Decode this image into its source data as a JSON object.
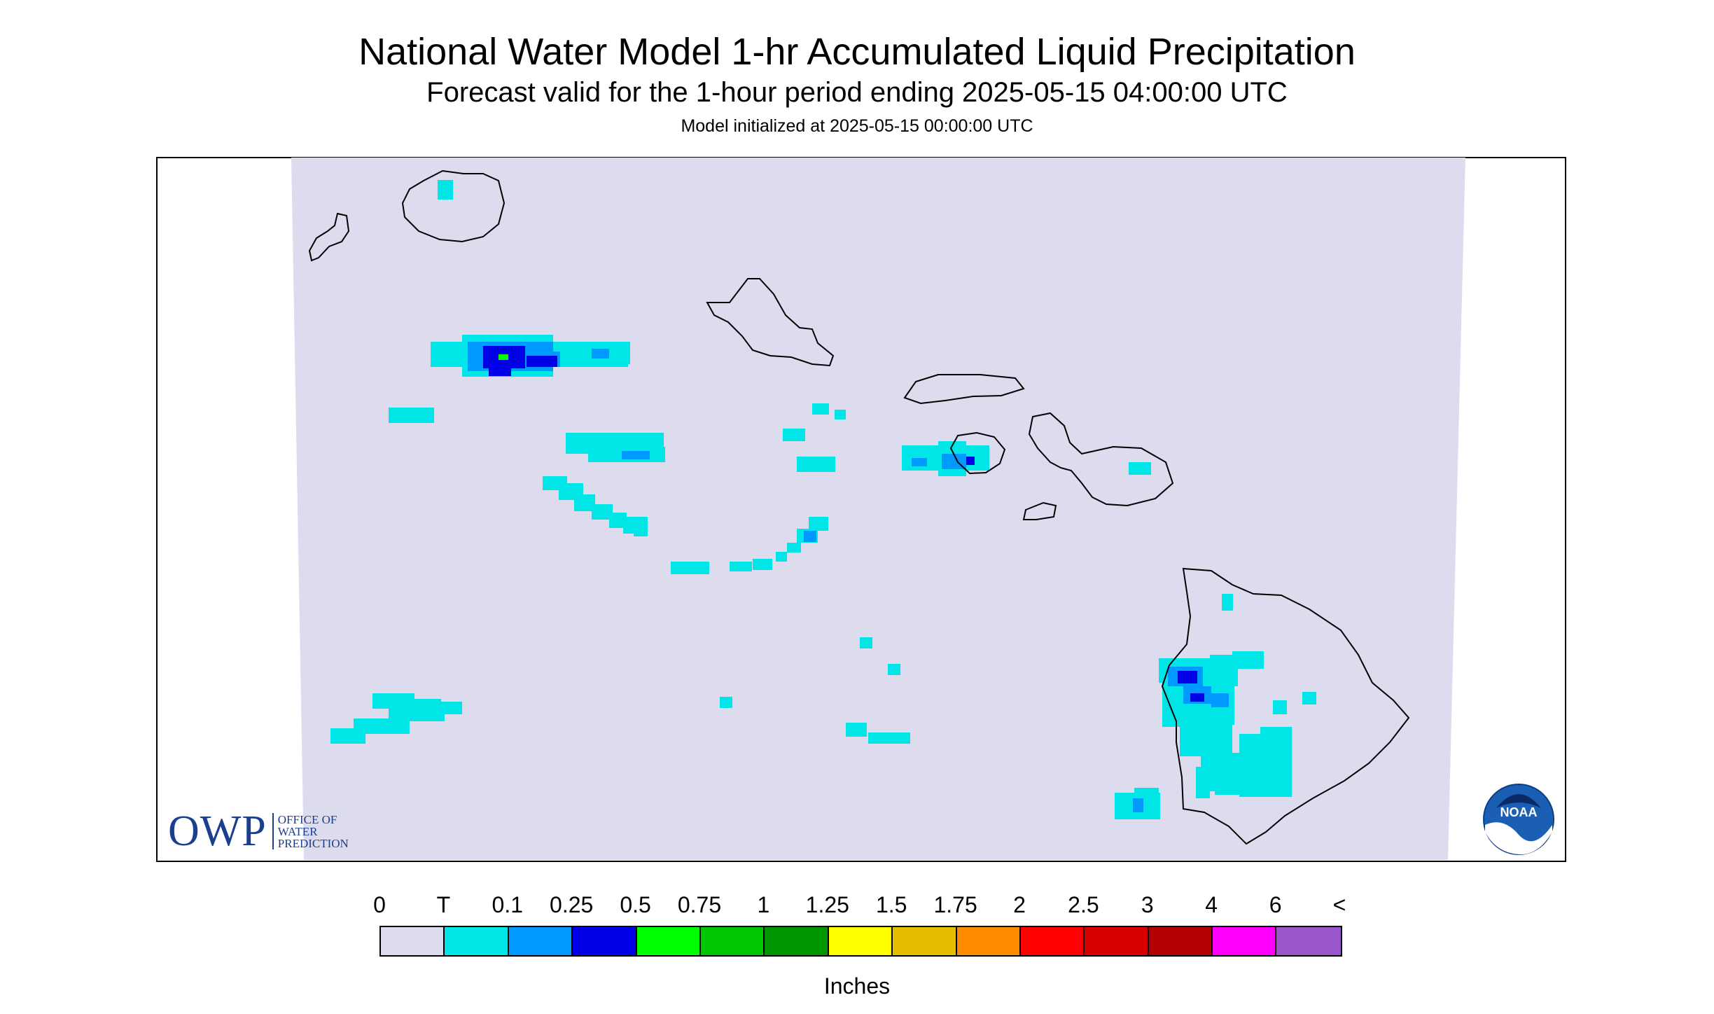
{
  "title": "National Water Model 1-hr Accumulated Liquid Precipitation",
  "subtitle": "Forecast valid for the 1-hour period ending 2025-05-15 04:00:00 UTC",
  "init_text": "Model initialized at 2025-05-15 00:00:00 UTC",
  "colors": {
    "map_background": "#dcdcee",
    "coastline": "#000000",
    "frame": "#000000"
  },
  "logos": {
    "owp_big": "OWP",
    "owp_line1": "OFFICE OF",
    "owp_line2": "WATER",
    "owp_line3": "PREDICTION",
    "noaa_text": "NOAA"
  },
  "legend": {
    "tick_labels": [
      "0",
      "T",
      "0.1",
      "0.25",
      "0.5",
      "0.75",
      "1",
      "1.25",
      "1.5",
      "1.75",
      "2",
      "2.5",
      "3",
      "4",
      "6",
      "<"
    ],
    "colors": [
      "#dcdcee",
      "#00e6e6",
      "#0099ff",
      "#0000e6",
      "#00ff00",
      "#00c800",
      "#009600",
      "#ffff00",
      "#e6be00",
      "#ff8c00",
      "#ff0000",
      "#d70000",
      "#b40000",
      "#ff00ff",
      "#9955cc"
    ],
    "units": "Inches"
  }
}
